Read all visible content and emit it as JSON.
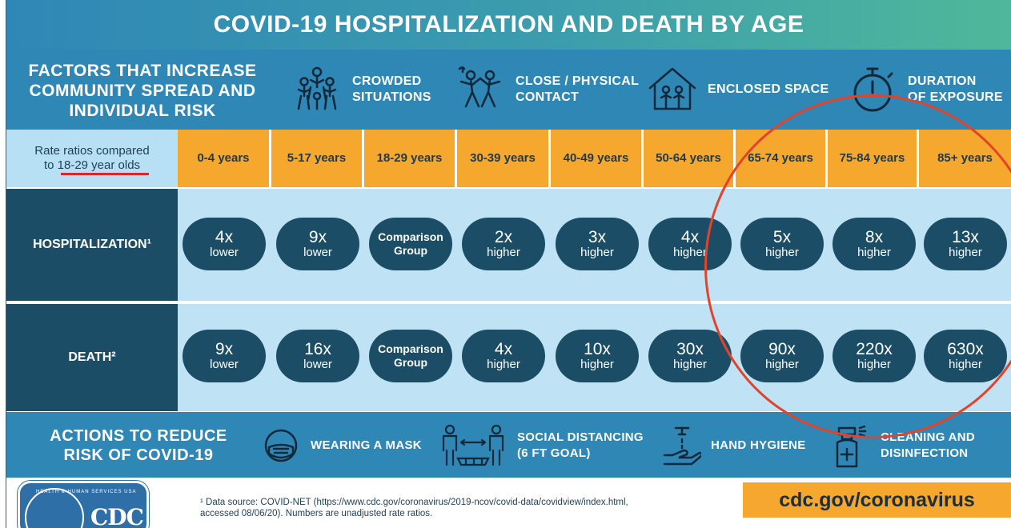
{
  "title": "COVID-19 HOSPITALIZATION AND DEATH BY AGE",
  "factors": {
    "heading": "FACTORS THAT INCREASE COMMUNITY SPREAD AND INDIVIDUAL RISK",
    "items": [
      {
        "icon": "crowd-icon",
        "label_lines": [
          "CROWDED",
          "SITUATIONS"
        ]
      },
      {
        "icon": "dancing-people-icon",
        "label_lines": [
          "CLOSE / PHYSICAL",
          "CONTACT"
        ]
      },
      {
        "icon": "house-family-icon",
        "label_lines": [
          "ENCLOSED SPACE"
        ]
      },
      {
        "icon": "stopwatch-icon",
        "label_lines": [
          "DURATION",
          "OF EXPOSURE"
        ]
      }
    ]
  },
  "rate_header": {
    "line1": "Rate ratios compared",
    "prefix": "to ",
    "highlight": "18-29 year olds"
  },
  "age_groups": [
    "0-4 years",
    "5-17 years",
    "18-29 years",
    "30-39 years",
    "40-49 years",
    "50-64 years",
    "65-74 years",
    "75-84 years",
    "85+ years"
  ],
  "rows": [
    {
      "label": "HOSPITALIZATION¹",
      "cells": [
        {
          "value": "4x",
          "desc": "lower"
        },
        {
          "value": "9x",
          "desc": "lower"
        },
        {
          "value": "Comparison",
          "desc": "Group",
          "comparison": true
        },
        {
          "value": "2x",
          "desc": "higher"
        },
        {
          "value": "3x",
          "desc": "higher"
        },
        {
          "value": "4x",
          "desc": "higher"
        },
        {
          "value": "5x",
          "desc": "higher"
        },
        {
          "value": "8x",
          "desc": "higher"
        },
        {
          "value": "13x",
          "desc": "higher"
        }
      ]
    },
    {
      "label": "DEATH²",
      "cells": [
        {
          "value": "9x",
          "desc": "lower"
        },
        {
          "value": "16x",
          "desc": "lower"
        },
        {
          "value": "Comparison",
          "desc": "Group",
          "comparison": true
        },
        {
          "value": "4x",
          "desc": "higher"
        },
        {
          "value": "10x",
          "desc": "higher"
        },
        {
          "value": "30x",
          "desc": "higher"
        },
        {
          "value": "90x",
          "desc": "higher"
        },
        {
          "value": "220x",
          "desc": "higher"
        },
        {
          "value": "630x",
          "desc": "higher"
        }
      ]
    }
  ],
  "actions": {
    "heading": "ACTIONS TO REDUCE RISK OF COVID-19",
    "items": [
      {
        "icon": "mask-icon",
        "label_lines": [
          "WEARING A MASK"
        ]
      },
      {
        "icon": "social-distancing-icon",
        "label_lines": [
          "SOCIAL DISTANCING",
          "(6 FT GOAL)"
        ]
      },
      {
        "icon": "hand-washing-icon",
        "label_lines": [
          "HAND HYGIENE"
        ]
      },
      {
        "icon": "spray-bottle-icon",
        "label_lines": [
          "CLEANING AND",
          "DISINFECTION"
        ]
      }
    ]
  },
  "footer": {
    "footnote_line1": "¹ Data source: COVID-NET (https://www.cdc.gov/coronavirus/2019-ncov/covid-data/covidview/index.html,",
    "footnote_line2": "accessed 08/06/20). Numbers are unadjusted rate ratios.",
    "logo_text": "CDC",
    "seal_text": "HEALTH & HUMAN SERVICES USA",
    "website": "cdc.gov/coronavirus"
  },
  "colors": {
    "dark_teal": "#1b4e66",
    "header_blue": "#2f87b6",
    "light_blue": "#bfe3f5",
    "orange": "#f5a72e",
    "annotation_red": "#e2432a"
  }
}
